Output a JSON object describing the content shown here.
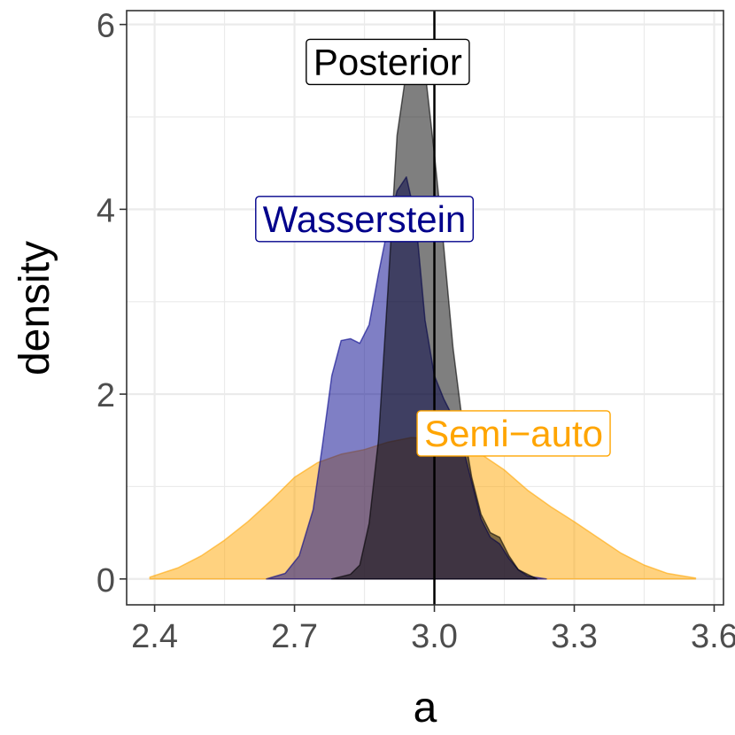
{
  "chart_data": {
    "type": "area",
    "xlabel": "a",
    "ylabel": "density",
    "xlim": [
      2.34,
      3.62
    ],
    "ylim": [
      -0.28,
      6.15
    ],
    "x_ticks": [
      2.4,
      2.7,
      3.0,
      3.3,
      3.6
    ],
    "x_tick_labels": [
      "2.4",
      "2.7",
      "3.0",
      "3.3",
      "3.6"
    ],
    "y_ticks": [
      0,
      2,
      4,
      6
    ],
    "y_tick_labels": [
      "0",
      "2",
      "4",
      "6"
    ],
    "grid": true,
    "reference_line_x": 3.0,
    "series": [
      {
        "name": "Semi−auto",
        "fill": "#ffa500",
        "stroke": "#ffa500",
        "opacity": 0.5,
        "label_at": [
          3.17,
          1.58
        ],
        "x": [
          2.39,
          2.45,
          2.5,
          2.55,
          2.6,
          2.65,
          2.7,
          2.75,
          2.8,
          2.85,
          2.9,
          2.95,
          3.0,
          3.05,
          3.1,
          3.15,
          3.2,
          3.25,
          3.3,
          3.35,
          3.4,
          3.45,
          3.5,
          3.56
        ],
        "y": [
          0.02,
          0.12,
          0.25,
          0.42,
          0.62,
          0.85,
          1.1,
          1.26,
          1.35,
          1.4,
          1.48,
          1.53,
          1.52,
          1.46,
          1.35,
          1.18,
          0.96,
          0.78,
          0.62,
          0.45,
          0.28,
          0.15,
          0.06,
          0.01
        ]
      },
      {
        "name": "Wasserstein",
        "fill": "#00008b",
        "stroke": "#00008b",
        "opacity": 0.5,
        "label_at": [
          2.85,
          3.9
        ],
        "x": [
          2.64,
          2.68,
          2.71,
          2.74,
          2.76,
          2.78,
          2.8,
          2.82,
          2.84,
          2.86,
          2.88,
          2.9,
          2.92,
          2.94,
          2.96,
          2.98,
          3.0,
          3.02,
          3.04,
          3.06,
          3.08,
          3.1,
          3.12,
          3.14,
          3.16,
          3.18,
          3.2,
          3.24
        ],
        "y": [
          0.0,
          0.06,
          0.25,
          0.75,
          1.45,
          2.2,
          2.58,
          2.6,
          2.55,
          2.75,
          3.3,
          3.8,
          4.2,
          4.35,
          3.9,
          2.8,
          2.2,
          1.95,
          1.75,
          1.45,
          1.05,
          0.65,
          0.45,
          0.38,
          0.22,
          0.1,
          0.03,
          0.0
        ]
      },
      {
        "name": "Posterior",
        "fill": "#000000",
        "stroke": "#000000",
        "opacity": 0.5,
        "label_at": [
          2.9,
          5.6
        ],
        "x": [
          2.78,
          2.82,
          2.84,
          2.86,
          2.88,
          2.9,
          2.92,
          2.94,
          2.96,
          2.98,
          3.0,
          3.02,
          3.04,
          3.06,
          3.08,
          3.1,
          3.12,
          3.14,
          3.16,
          3.18,
          3.22
        ],
        "y": [
          0.0,
          0.05,
          0.15,
          0.6,
          1.5,
          3.1,
          4.8,
          5.5,
          5.8,
          5.5,
          4.6,
          3.6,
          2.5,
          1.7,
          1.1,
          0.7,
          0.5,
          0.45,
          0.25,
          0.1,
          0.0
        ]
      }
    ]
  }
}
